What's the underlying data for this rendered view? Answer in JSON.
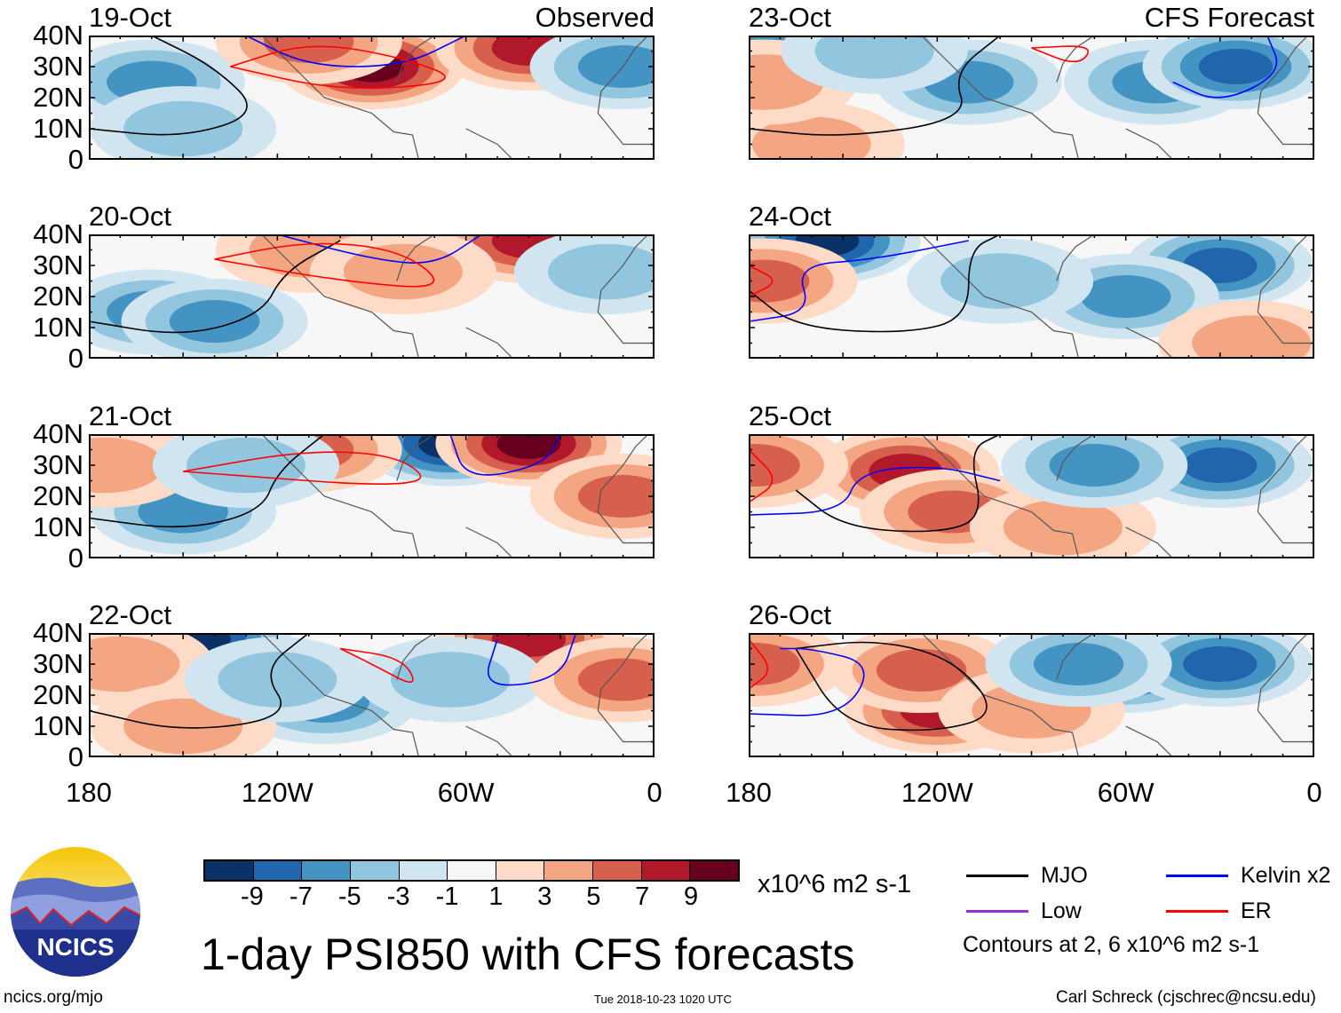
{
  "chart_data": {
    "type": "heatmap",
    "title": "1-day PSI850 with CFS forecasts",
    "variable": "PSI850 anomaly",
    "units": "x10^6 m2 s-1",
    "lat_range": [
      0,
      40
    ],
    "lon_range": [
      -180,
      0
    ],
    "y_ticks": [
      "40N",
      "30N",
      "20N",
      "10N",
      "0"
    ],
    "x_ticks": [
      "180",
      "120W",
      "60W",
      "0"
    ],
    "columns": [
      {
        "header": "Observed"
      },
      {
        "header": "CFS Forecast"
      }
    ],
    "panels": [
      {
        "date": "19-Oct",
        "source": "Observed",
        "features": [
          {
            "lon": -90,
            "lat": 30,
            "v": 9
          },
          {
            "lon": -40,
            "lat": 36,
            "v": 7
          },
          {
            "lon": -160,
            "lat": 25,
            "v": -5
          },
          {
            "lon": -150,
            "lat": 10,
            "v": -3
          },
          {
            "lon": -10,
            "lat": 30,
            "v": -5
          },
          {
            "lon": -110,
            "lat": 38,
            "v": 5
          }
        ],
        "mjo": [
          [
            -180,
            10
          ],
          [
            -150,
            7
          ],
          [
            -125,
            15
          ],
          [
            -140,
            30
          ],
          [
            -160,
            40
          ]
        ],
        "kelvin": [
          [
            -130,
            40
          ],
          [
            -110,
            30
          ],
          [
            -80,
            30
          ],
          [
            -60,
            40
          ]
        ],
        "er": [
          [
            -135,
            30
          ],
          [
            -110,
            38
          ],
          [
            -80,
            33
          ],
          [
            -60,
            25
          ],
          [
            -100,
            22
          ],
          [
            -135,
            30
          ]
        ]
      },
      {
        "date": "20-Oct",
        "source": "Observed",
        "features": [
          {
            "lon": -40,
            "lat": 38,
            "v": 7
          },
          {
            "lon": -110,
            "lat": 35,
            "v": 3
          },
          {
            "lon": -160,
            "lat": 15,
            "v": -5
          },
          {
            "lon": -140,
            "lat": 12,
            "v": -5
          },
          {
            "lon": -15,
            "lat": 28,
            "v": -3
          },
          {
            "lon": -80,
            "lat": 28,
            "v": 3
          }
        ],
        "mjo": [
          [
            -180,
            12
          ],
          [
            -150,
            7
          ],
          [
            -125,
            14
          ],
          [
            -118,
            28
          ],
          [
            -100,
            38
          ]
        ],
        "kelvin": [
          [
            -120,
            40
          ],
          [
            -90,
            32
          ],
          [
            -70,
            30
          ],
          [
            -55,
            40
          ]
        ],
        "er": [
          [
            -140,
            32
          ],
          [
            -110,
            38
          ],
          [
            -80,
            35
          ],
          [
            -65,
            22
          ],
          [
            -100,
            25
          ],
          [
            -140,
            32
          ]
        ]
      },
      {
        "date": "21-Oct",
        "source": "Observed",
        "features": [
          {
            "lon": -65,
            "lat": 37,
            "v": -9
          },
          {
            "lon": -40,
            "lat": 37,
            "v": 9
          },
          {
            "lon": -110,
            "lat": 35,
            "v": 5
          },
          {
            "lon": -150,
            "lat": 15,
            "v": -5
          },
          {
            "lon": -175,
            "lat": 30,
            "v": 3
          },
          {
            "lon": -10,
            "lat": 20,
            "v": 5
          },
          {
            "lon": -130,
            "lat": 30,
            "v": -3
          }
        ],
        "mjo": [
          [
            -180,
            13
          ],
          [
            -150,
            9
          ],
          [
            -125,
            15
          ],
          [
            -120,
            28
          ],
          [
            -105,
            40
          ]
        ],
        "kelvin": [
          [
            -65,
            40
          ],
          [
            -60,
            25
          ],
          [
            -35,
            30
          ],
          [
            -30,
            40
          ]
        ],
        "er": [
          [
            -150,
            28
          ],
          [
            -110,
            35
          ],
          [
            -80,
            33
          ],
          [
            -70,
            22
          ],
          [
            -150,
            28
          ]
        ]
      },
      {
        "date": "22-Oct",
        "source": "Observed",
        "features": [
          {
            "lon": -145,
            "lat": 38,
            "v": -9
          },
          {
            "lon": -40,
            "lat": 38,
            "v": 7
          },
          {
            "lon": -105,
            "lat": 18,
            "v": -5
          },
          {
            "lon": -65,
            "lat": 25,
            "v": -3
          },
          {
            "lon": -170,
            "lat": 30,
            "v": 3
          },
          {
            "lon": -150,
            "lat": 10,
            "v": 3
          },
          {
            "lon": -10,
            "lat": 25,
            "v": 5
          },
          {
            "lon": -120,
            "lat": 25,
            "v": -3
          }
        ],
        "mjo": [
          [
            -180,
            15
          ],
          [
            -150,
            8
          ],
          [
            -115,
            13
          ],
          [
            -125,
            28
          ],
          [
            -110,
            40
          ]
        ],
        "kelvin": [
          [
            -50,
            38
          ],
          [
            -55,
            22
          ],
          [
            -30,
            25
          ],
          [
            -25,
            40
          ]
        ],
        "er": [
          [
            -100,
            35
          ],
          [
            -80,
            32
          ],
          [
            -75,
            22
          ],
          [
            -90,
            30
          ],
          [
            -100,
            35
          ]
        ]
      },
      {
        "date": "23-Oct",
        "source": "CFS Forecast",
        "features": [
          {
            "lon": -170,
            "lat": 38,
            "v": -5
          },
          {
            "lon": -50,
            "lat": 25,
            "v": -5
          },
          {
            "lon": -25,
            "lat": 30,
            "v": -7
          },
          {
            "lon": -110,
            "lat": 25,
            "v": -5
          },
          {
            "lon": -160,
            "lat": 5,
            "v": 3
          },
          {
            "lon": -175,
            "lat": 25,
            "v": 3
          },
          {
            "lon": -140,
            "lat": 35,
            "v": -3
          }
        ],
        "mjo": [
          [
            -180,
            10
          ],
          [
            -150,
            7
          ],
          [
            -110,
            13
          ],
          [
            -115,
            28
          ],
          [
            -100,
            40
          ]
        ],
        "kelvin": [
          [
            -45,
            25
          ],
          [
            -30,
            18
          ],
          [
            -10,
            28
          ],
          [
            -15,
            40
          ]
        ],
        "er": [
          [
            -90,
            36
          ],
          [
            -75,
            30
          ],
          [
            -70,
            37
          ],
          [
            -90,
            36
          ]
        ]
      },
      {
        "date": "24-Oct",
        "source": "CFS Forecast",
        "features": [
          {
            "lon": -155,
            "lat": 38,
            "v": -9
          },
          {
            "lon": -30,
            "lat": 30,
            "v": -7
          },
          {
            "lon": -60,
            "lat": 20,
            "v": -5
          },
          {
            "lon": -175,
            "lat": 25,
            "v": 5
          },
          {
            "lon": -20,
            "lat": 5,
            "v": 3
          },
          {
            "lon": -100,
            "lat": 25,
            "v": -3
          }
        ],
        "mjo": [
          [
            -180,
            22
          ],
          [
            -165,
            10
          ],
          [
            -130,
            8
          ],
          [
            -110,
            13
          ],
          [
            -110,
            35
          ],
          [
            -100,
            40
          ]
        ],
        "kelvin": [
          [
            -180,
            12
          ],
          [
            -160,
            15
          ],
          [
            -165,
            30
          ],
          [
            -140,
            32
          ],
          [
            -110,
            38
          ]
        ],
        "er": [
          [
            -180,
            30
          ],
          [
            -170,
            25
          ],
          [
            -180,
            20
          ]
        ]
      },
      {
        "date": "25-Oct",
        "source": "CFS Forecast",
        "features": [
          {
            "lon": -55,
            "lat": 35,
            "v": -9
          },
          {
            "lon": -30,
            "lat": 30,
            "v": -7
          },
          {
            "lon": -130,
            "lat": 28,
            "v": 7
          },
          {
            "lon": -115,
            "lat": 15,
            "v": 5
          },
          {
            "lon": -178,
            "lat": 30,
            "v": 5
          },
          {
            "lon": -80,
            "lat": 10,
            "v": 3
          },
          {
            "lon": -70,
            "lat": 30,
            "v": -5
          }
        ],
        "mjo": [
          [
            -165,
            22
          ],
          [
            -150,
            10
          ],
          [
            -120,
            8
          ],
          [
            -105,
            13
          ],
          [
            -110,
            35
          ],
          [
            -100,
            40
          ]
        ],
        "kelvin": [
          [
            -180,
            14
          ],
          [
            -150,
            15
          ],
          [
            -145,
            28
          ],
          [
            -120,
            30
          ],
          [
            -100,
            25
          ]
        ],
        "er": [
          [
            -180,
            35
          ],
          [
            -170,
            25
          ],
          [
            -180,
            18
          ]
        ]
      },
      {
        "date": "26-Oct",
        "source": "CFS Forecast",
        "features": [
          {
            "lon": -60,
            "lat": 28,
            "v": -7
          },
          {
            "lon": -30,
            "lat": 30,
            "v": -7
          },
          {
            "lon": -120,
            "lat": 15,
            "v": 7
          },
          {
            "lon": -125,
            "lat": 28,
            "v": 5
          },
          {
            "lon": -178,
            "lat": 30,
            "v": 5
          },
          {
            "lon": -90,
            "lat": 15,
            "v": 3
          },
          {
            "lon": -75,
            "lat": 30,
            "v": -5
          }
        ],
        "mjo": [
          [
            -165,
            35
          ],
          [
            -150,
            10
          ],
          [
            -120,
            8
          ],
          [
            -100,
            14
          ],
          [
            -115,
            32
          ],
          [
            -140,
            38
          ],
          [
            -165,
            35
          ]
        ],
        "kelvin": [
          [
            -180,
            14
          ],
          [
            -150,
            13
          ],
          [
            -140,
            30
          ],
          [
            -160,
            35
          ],
          [
            -170,
            35
          ]
        ],
        "er": [
          [
            -180,
            38
          ],
          [
            -172,
            28
          ],
          [
            -180,
            22
          ]
        ]
      }
    ],
    "colorbar": {
      "levels": [
        -9,
        -7,
        -5,
        -3,
        -1,
        1,
        3,
        5,
        7,
        9
      ],
      "labels": [
        "-9",
        "-7",
        "-5",
        "-3",
        "-1",
        "1",
        "3",
        "5",
        "7",
        "9"
      ],
      "colors": [
        "#0a3266",
        "#2166ac",
        "#4393c3",
        "#92c5de",
        "#d1e5f0",
        "#f7f7f7",
        "#fddbc7",
        "#f4a582",
        "#d6604d",
        "#b2182b",
        "#67001f"
      ],
      "units_label": "x10^6 m2 s-1"
    },
    "legend": [
      {
        "label": "MJO",
        "color": "#000000"
      },
      {
        "label": "Kelvin x2",
        "color": "#0000ff"
      },
      {
        "label": "Low",
        "color": "#9932cc"
      },
      {
        "label": "ER",
        "color": "#ff0000"
      }
    ],
    "contour_note": "Contours at 2, 6 x10^6 m2 s-1"
  },
  "footer": {
    "logo_text": "NCICS",
    "site": "ncics.org/mjo",
    "timestamp": "Tue 2018-10-23 1020 UTC",
    "credit": "Carl Schreck (cjschrec@ncsu.edu)"
  }
}
